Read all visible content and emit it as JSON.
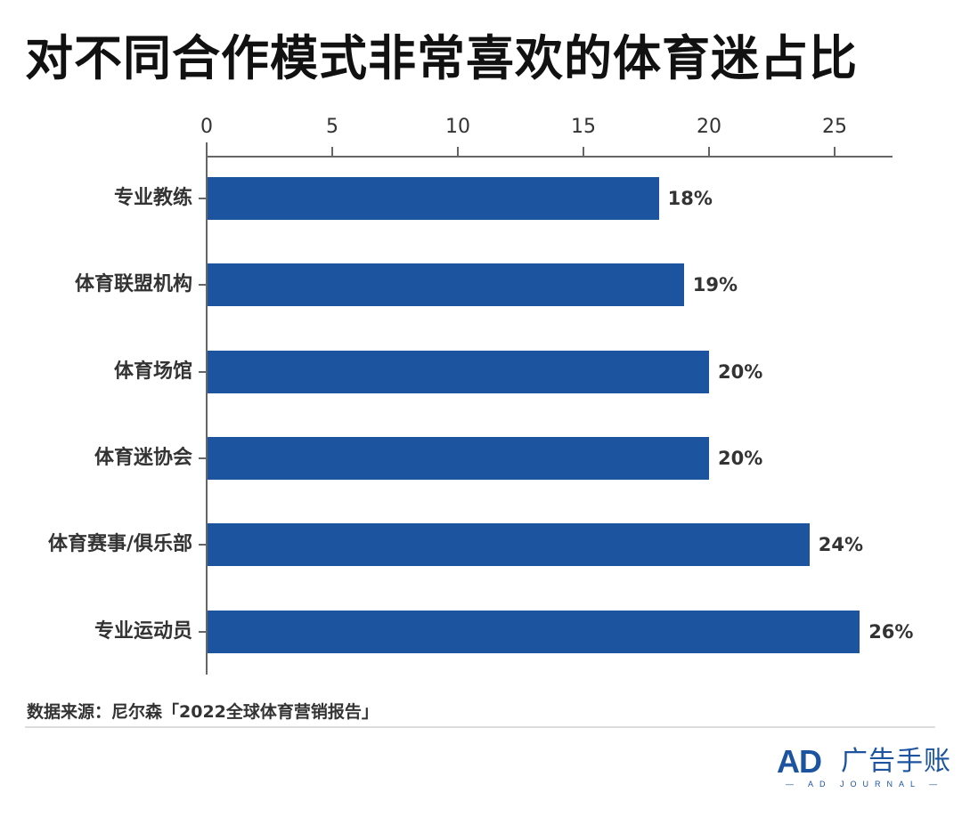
{
  "title": "对不同合作模式非常喜欢的体育迷占比",
  "source": "数据来源：尼尔森「2022全球体育营销报告」",
  "logo": {
    "ad": "AD",
    "cn": "广告手账",
    "sub": "— AD JOURNAL —"
  },
  "colors": {
    "bar": "#1c54a0",
    "axis": "#666666",
    "text": "#333333"
  },
  "chart_data": {
    "type": "bar",
    "orientation": "horizontal",
    "title": "对不同合作模式非常喜欢的体育迷占比",
    "categories": [
      "专业教练",
      "体育联盟机构",
      "体育场馆",
      "体育迷协会",
      "体育赛事/俱乐部",
      "专业运动员"
    ],
    "values": [
      18,
      19,
      20,
      20,
      24,
      26
    ],
    "value_labels": [
      "18%",
      "19%",
      "20%",
      "20%",
      "24%",
      "26%"
    ],
    "xlabel": "",
    "ylabel": "",
    "xlim": [
      0,
      27
    ],
    "x_ticks": [
      0,
      5,
      10,
      15,
      20,
      25
    ],
    "x_axis_position": "top",
    "grid": false,
    "legend": null,
    "source": "数据来源：尼尔森「2022全球体育营销报告」"
  }
}
